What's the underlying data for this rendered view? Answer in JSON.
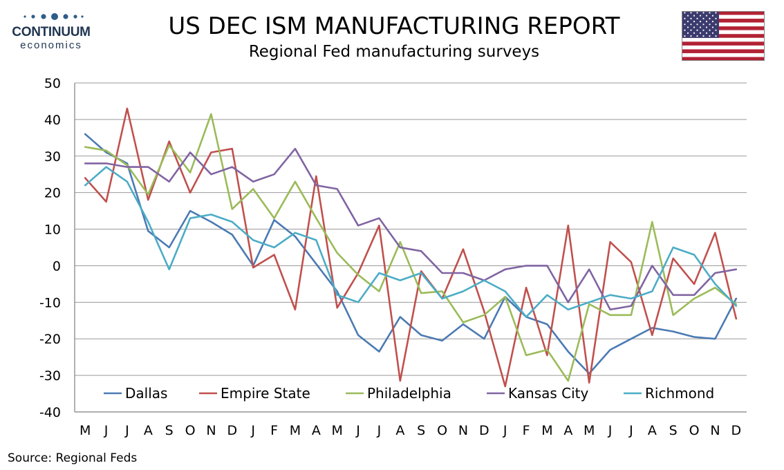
{
  "brand": {
    "name": "CONTINUUM",
    "tagline": "economics",
    "color": "#1f3550",
    "dot_color": "#2e5d8a"
  },
  "header": {
    "title": "US DEC ISM MANUFACTURING REPORT",
    "subtitle": "Regional Fed manufacturing surveys",
    "flag_icon": "us-flag-icon"
  },
  "footer": {
    "source": "Source: Regional Feds"
  },
  "chart_data": {
    "type": "line",
    "title": "",
    "xlabel": "",
    "ylabel": "",
    "ylim": [
      -40,
      50
    ],
    "yticks": [
      50,
      40,
      30,
      20,
      10,
      0,
      -10,
      -20,
      -30,
      -40
    ],
    "grid": true,
    "legend_position": "bottom-inside",
    "categories": [
      "M",
      "J",
      "J",
      "A",
      "S",
      "O",
      "N",
      "D",
      "J",
      "F",
      "M",
      "A",
      "M",
      "J",
      "J",
      "A",
      "S",
      "O",
      "N",
      "D",
      "J",
      "F",
      "M",
      "A",
      "M",
      "J",
      "J",
      "A",
      "S",
      "O",
      "N",
      "D"
    ],
    "series": [
      {
        "name": "Dallas",
        "color": "#4a7ab3",
        "values": [
          36,
          31,
          28,
          9.5,
          5,
          15,
          12,
          8.5,
          0,
          12.5,
          8,
          0.5,
          -7,
          -19,
          -23.5,
          -14,
          -19,
          -20.5,
          -16,
          -20,
          -8.5,
          -14,
          -16,
          -23.5,
          -29.5,
          -23,
          -20,
          -17,
          -18,
          -19.5,
          -20,
          -9
        ]
      },
      {
        "name": "Empire State",
        "color": "#c0504d",
        "values": [
          24,
          17.5,
          43,
          18,
          34,
          20,
          31,
          32,
          -0.5,
          3,
          -12,
          24.5,
          -11.5,
          -2,
          11,
          -31.5,
          -1.5,
          -9,
          4.5,
          -12.5,
          -33,
          -6,
          -24.5,
          11,
          -32,
          6.5,
          1,
          -19,
          2,
          -5,
          9,
          -14.5
        ]
      },
      {
        "name": "Philadelphia",
        "color": "#9bbb59",
        "values": [
          32.5,
          31.5,
          27.5,
          19.5,
          33,
          25.5,
          41.5,
          15.5,
          21,
          13,
          23,
          13,
          3.5,
          -2.5,
          -7,
          6.5,
          -7.5,
          -7,
          -15.5,
          -13.5,
          -8.5,
          -24.5,
          -23,
          -31.5,
          -10.5,
          -13.5,
          -13.5,
          12,
          -13.5,
          -9,
          -6,
          -10.5
        ]
      },
      {
        "name": "Kansas City",
        "color": "#8064a2",
        "values": [
          28,
          28,
          27,
          27,
          23,
          31,
          25,
          27,
          23,
          25,
          32,
          22,
          21,
          11,
          13,
          5,
          4,
          -2,
          -2,
          -4,
          -1,
          0,
          0,
          -10,
          -1,
          -12,
          -11,
          0,
          -8,
          -8,
          -2,
          -1
        ]
      },
      {
        "name": "Richmond",
        "color": "#4bacc6",
        "values": [
          22,
          27,
          23,
          12,
          -1,
          13,
          14,
          12,
          7,
          5,
          9,
          7,
          -8,
          -10,
          -2,
          -4,
          -2,
          -9,
          -7,
          -4,
          -7,
          -14,
          -8,
          -12,
          -10,
          -8,
          -9,
          -7,
          5,
          3,
          -5,
          -11
        ]
      }
    ]
  }
}
